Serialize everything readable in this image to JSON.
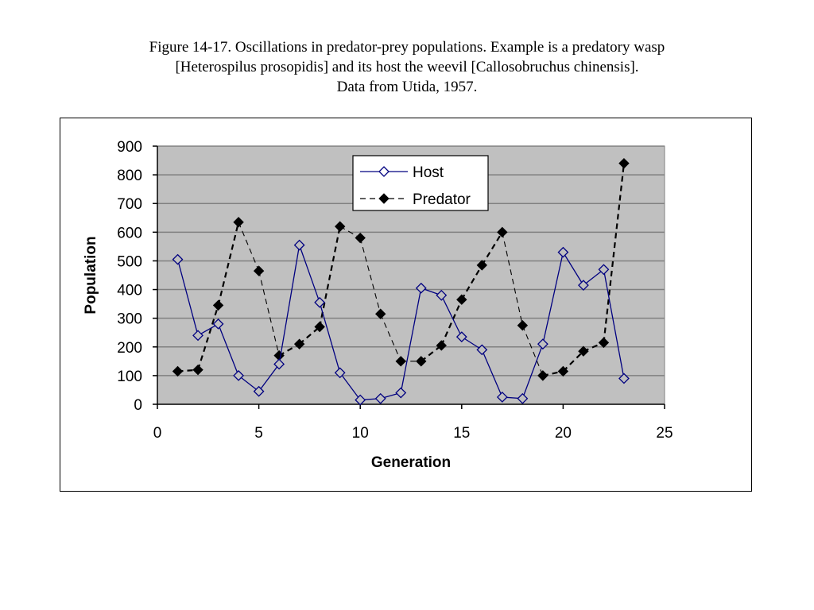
{
  "caption": {
    "line1": "Figure 14-17. Oscillations in predator-prey populations. Example is a predatory wasp",
    "line2": "[Heterospilus prosopidis] and its host the weevil [Callosobruchus chinensis].",
    "line3": "Data from Utida, 1957."
  },
  "chart_data": {
    "type": "line",
    "xlabel": "Generation",
    "ylabel": "Population",
    "xlim": [
      0,
      25
    ],
    "ylim": [
      0,
      900
    ],
    "xticks": [
      0,
      5,
      10,
      15,
      20,
      25
    ],
    "yticks": [
      0,
      100,
      200,
      300,
      400,
      500,
      600,
      700,
      800,
      900
    ],
    "grid": "horizontal",
    "legend_position": "top-center",
    "plot_background": "#c0c0c0",
    "x": [
      1,
      2,
      3,
      4,
      5,
      6,
      7,
      8,
      9,
      10,
      11,
      12,
      13,
      14,
      15,
      16,
      17,
      18,
      19,
      20,
      21,
      22,
      23
    ],
    "series": [
      {
        "name": "Host",
        "color": "#000080",
        "marker": "open-diamond",
        "line": "solid",
        "values": [
          505,
          240,
          280,
          100,
          45,
          140,
          555,
          355,
          110,
          15,
          20,
          40,
          405,
          380,
          235,
          190,
          25,
          20,
          210,
          530,
          415,
          470,
          90
        ]
      },
      {
        "name": "Predator",
        "color": "#000000",
        "marker": "filled-diamond",
        "line": "dashed",
        "values": [
          115,
          120,
          345,
          635,
          465,
          170,
          210,
          270,
          620,
          580,
          315,
          150,
          150,
          205,
          365,
          485,
          600,
          275,
          100,
          115,
          185,
          215,
          840
        ]
      }
    ]
  }
}
